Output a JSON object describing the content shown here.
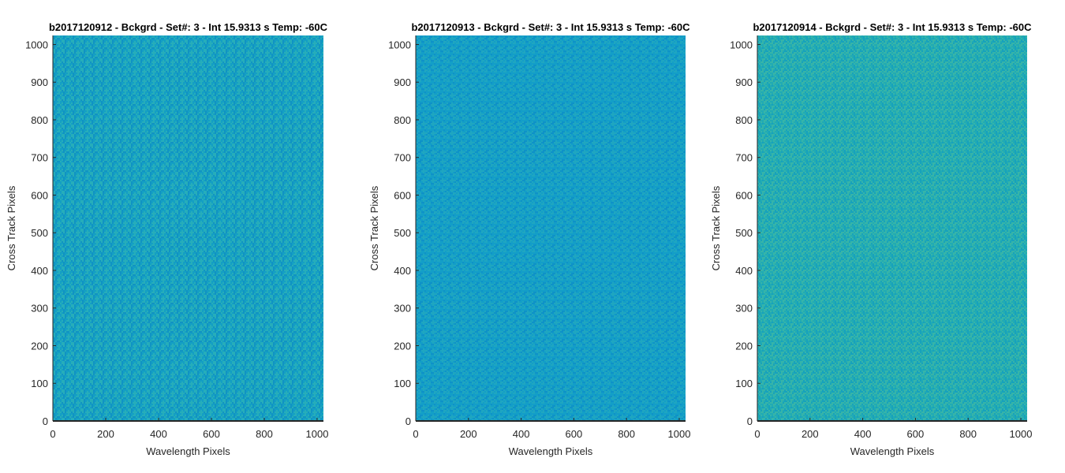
{
  "chart_data": [
    {
      "type": "heatmap",
      "title": "b2017120912 - Bckgrd - Set#: 3 - Int 15.9313 s Temp: -60C",
      "xlabel": "Wavelength Pixels",
      "ylabel": "Cross Track Pixels",
      "xlim": [
        0,
        1024
      ],
      "ylim": [
        0,
        1024
      ],
      "xticks": [
        0,
        200,
        400,
        600,
        800,
        1000
      ],
      "yticks": [
        0,
        100,
        200,
        300,
        400,
        500,
        600,
        700,
        800,
        900,
        1000
      ],
      "base_color": "#149fc4",
      "noise_color_light": "#2ab0b8",
      "noise_color_dark": "#0e8fc4",
      "grid": false
    },
    {
      "type": "heatmap",
      "title": "b2017120913 - Bckgrd - Set#: 3 - Int 15.9313 s Temp: -60C",
      "xlabel": "Wavelength Pixels",
      "ylabel": "Cross Track Pixels",
      "xlim": [
        0,
        1024
      ],
      "ylim": [
        0,
        1024
      ],
      "xticks": [
        0,
        200,
        400,
        600,
        800,
        1000
      ],
      "yticks": [
        0,
        100,
        200,
        300,
        400,
        500,
        600,
        700,
        800,
        900,
        1000
      ],
      "base_color": "#139ec8",
      "noise_color_light": "#22a8be",
      "noise_color_dark": "#0b8ec8",
      "grid": false
    },
    {
      "type": "heatmap",
      "title": "b2017120914 - Bckgrd - Set#: 3 - Int 15.9313 s Temp: -60C",
      "xlabel": "Wavelength Pixels",
      "ylabel": "Cross Track Pixels",
      "xlim": [
        0,
        1024
      ],
      "ylim": [
        0,
        1024
      ],
      "xticks": [
        0,
        200,
        400,
        600,
        800,
        1000
      ],
      "yticks": [
        0,
        100,
        200,
        300,
        400,
        500,
        600,
        700,
        800,
        900,
        1000
      ],
      "base_color": "#21abb4",
      "noise_color_light": "#3bb7a6",
      "noise_color_dark": "#139fc0",
      "grid": false
    }
  ]
}
